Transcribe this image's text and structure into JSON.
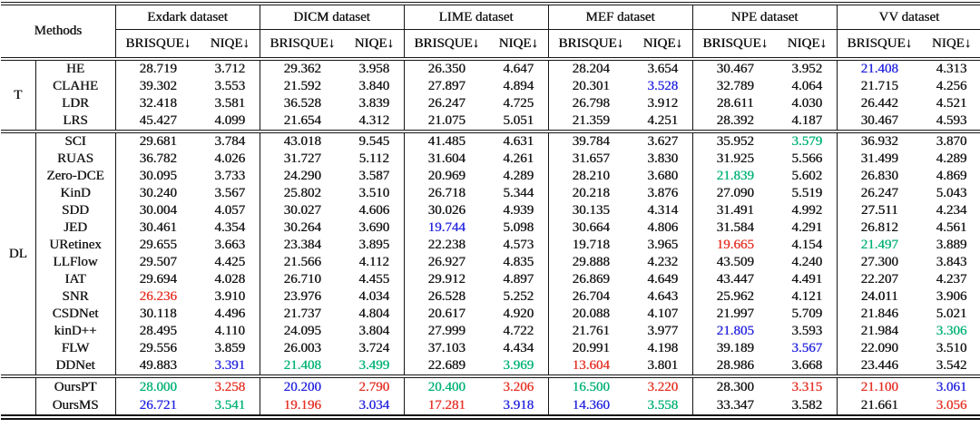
{
  "table": {
    "methods_label": "Methods",
    "datasets": [
      "Exdark dataset",
      "DICM dataset",
      "LIME dataset",
      "MEF dataset",
      "NPE dataset",
      "VV dataset"
    ],
    "metrics": [
      "BRISQUE↓",
      "NIQE↓"
    ],
    "colors": {
      "red": "#e53226",
      "blue": "#2626df",
      "green": "#00b274",
      "black": "#161616"
    },
    "sections": [
      {
        "label": "T",
        "rows": [
          {
            "method": "HE",
            "values": [
              "28.719",
              "3.712",
              "29.362",
              "3.958",
              "26.350",
              "4.647",
              "28.204",
              "3.654",
              "30.467",
              "3.952",
              "21.408",
              "4.313"
            ],
            "colors": [
              null,
              null,
              null,
              null,
              null,
              null,
              null,
              null,
              null,
              null,
              "blue",
              null
            ]
          },
          {
            "method": "CLAHE",
            "values": [
              "39.302",
              "3.553",
              "21.592",
              "3.840",
              "27.897",
              "4.894",
              "20.301",
              "3.528",
              "32.789",
              "4.064",
              "21.715",
              "4.256"
            ],
            "colors": [
              null,
              null,
              null,
              null,
              null,
              null,
              null,
              "blue",
              null,
              null,
              null,
              null
            ]
          },
          {
            "method": "LDR",
            "values": [
              "32.418",
              "3.581",
              "36.528",
              "3.839",
              "26.247",
              "4.725",
              "26.798",
              "3.912",
              "28.611",
              "4.030",
              "26.442",
              "4.521"
            ]
          },
          {
            "method": "LRS",
            "values": [
              "45.427",
              "4.099",
              "21.654",
              "4.312",
              "21.075",
              "5.051",
              "21.359",
              "4.251",
              "28.392",
              "4.187",
              "30.467",
              "4.593"
            ]
          }
        ]
      },
      {
        "label": "DL",
        "rows": [
          {
            "method": "SCI",
            "values": [
              "29.681",
              "3.784",
              "43.018",
              "9.545",
              "41.485",
              "4.631",
              "39.784",
              "3.627",
              "35.952",
              "3.579",
              "36.932",
              "3.870"
            ],
            "colors": [
              null,
              null,
              null,
              null,
              null,
              null,
              null,
              null,
              null,
              "green",
              null,
              null
            ]
          },
          {
            "method": "RUAS",
            "values": [
              "36.782",
              "4.026",
              "31.727",
              "5.112",
              "31.604",
              "4.261",
              "31.657",
              "3.830",
              "31.925",
              "5.566",
              "31.499",
              "4.289"
            ]
          },
          {
            "method": "Zero-DCE",
            "values": [
              "30.095",
              "3.733",
              "24.290",
              "3.587",
              "20.969",
              "4.289",
              "28.210",
              "3.680",
              "21.839",
              "5.602",
              "26.830",
              "4.869"
            ],
            "colors": [
              null,
              null,
              null,
              null,
              null,
              null,
              null,
              null,
              "green",
              null,
              null,
              null
            ]
          },
          {
            "method": "KinD",
            "values": [
              "30.240",
              "3.567",
              "25.802",
              "3.510",
              "26.718",
              "5.344",
              "20.218",
              "3.876",
              "27.090",
              "5.519",
              "26.247",
              "5.043"
            ]
          },
          {
            "method": "SDD",
            "values": [
              "30.004",
              "4.057",
              "30.027",
              "4.606",
              "30.026",
              "4.939",
              "30.135",
              "4.314",
              "31.491",
              "4.992",
              "27.511",
              "4.234"
            ]
          },
          {
            "method": "JED",
            "values": [
              "30.461",
              "4.354",
              "30.264",
              "3.690",
              "19.744",
              "5.098",
              "30.664",
              "4.806",
              "31.584",
              "4.291",
              "26.812",
              "4.561"
            ],
            "colors": [
              null,
              null,
              null,
              null,
              "blue",
              null,
              null,
              null,
              null,
              null,
              null,
              null
            ]
          },
          {
            "method": "URetinex",
            "values": [
              "29.655",
              "3.663",
              "23.384",
              "3.895",
              "22.238",
              "4.573",
              "19.718",
              "3.965",
              "19.665",
              "4.154",
              "21.497",
              "3.889"
            ],
            "colors": [
              null,
              null,
              null,
              null,
              null,
              null,
              null,
              null,
              "red",
              null,
              "green",
              null
            ]
          },
          {
            "method": "LLFlow",
            "values": [
              "29.507",
              "4.425",
              "21.566",
              "4.112",
              "26.927",
              "4.835",
              "29.888",
              "4.232",
              "43.509",
              "4.240",
              "27.300",
              "3.843"
            ]
          },
          {
            "method": "IAT",
            "values": [
              "29.694",
              "4.028",
              "26.710",
              "4.455",
              "29.912",
              "4.897",
              "26.869",
              "4.649",
              "43.447",
              "4.491",
              "22.207",
              "4.237"
            ]
          },
          {
            "method": "SNR",
            "values": [
              "26.236",
              "3.910",
              "23.976",
              "4.034",
              "26.528",
              "5.252",
              "26.704",
              "4.643",
              "25.962",
              "4.121",
              "24.011",
              "3.906"
            ],
            "colors": [
              "red",
              null,
              null,
              null,
              null,
              null,
              null,
              null,
              null,
              null,
              null,
              null
            ]
          },
          {
            "method": "CSDNet",
            "values": [
              "30.118",
              "4.496",
              "21.737",
              "4.804",
              "20.617",
              "4.920",
              "20.088",
              "4.107",
              "21.997",
              "5.709",
              "21.846",
              "5.021"
            ]
          },
          {
            "method": "kinD++",
            "values": [
              "28.495",
              "4.110",
              "24.095",
              "3.804",
              "27.999",
              "4.722",
              "21.761",
              "3.977",
              "21.805",
              "3.593",
              "21.984",
              "3.306"
            ],
            "colors": [
              null,
              null,
              null,
              null,
              null,
              null,
              null,
              null,
              "blue",
              null,
              null,
              "green"
            ]
          },
          {
            "method": "FLW",
            "values": [
              "29.556",
              "3.859",
              "26.003",
              "3.724",
              "37.103",
              "4.434",
              "20.991",
              "4.198",
              "39.189",
              "3.567",
              "22.090",
              "3.510"
            ],
            "colors": [
              null,
              null,
              null,
              null,
              null,
              null,
              null,
              null,
              null,
              "blue",
              null,
              null
            ]
          },
          {
            "method": "DDNet",
            "values": [
              "49.883",
              "3.391",
              "21.408",
              "3.499",
              "22.689",
              "3.969",
              "13.604",
              "3.801",
              "28.986",
              "3.668",
              "23.446",
              "3.542"
            ],
            "colors": [
              null,
              "blue",
              "green",
              "green",
              null,
              "green",
              "red",
              null,
              null,
              null,
              null,
              null
            ]
          }
        ]
      },
      {
        "label": "",
        "rows": [
          {
            "method": "OursPT",
            "values": [
              "28.000",
              "3.258",
              "20.200",
              "2.790",
              "20.400",
              "3.206",
              "16.500",
              "3.220",
              "28.300",
              "3.315",
              "21.100",
              "3.061"
            ],
            "colors": [
              "green",
              "red",
              "blue",
              "red",
              "green",
              "red",
              "green",
              "red",
              null,
              "red",
              "red",
              "blue"
            ]
          },
          {
            "method": "OursMS",
            "values": [
              "26.721",
              "3.541",
              "19.196",
              "3.034",
              "17.281",
              "3.918",
              "14.360",
              "3.558",
              "33.347",
              "3.582",
              "21.661",
              "3.056"
            ],
            "colors": [
              "blue",
              "green",
              "red",
              "blue",
              "red",
              "blue",
              "blue",
              "green",
              null,
              null,
              null,
              "red"
            ]
          }
        ]
      }
    ]
  }
}
